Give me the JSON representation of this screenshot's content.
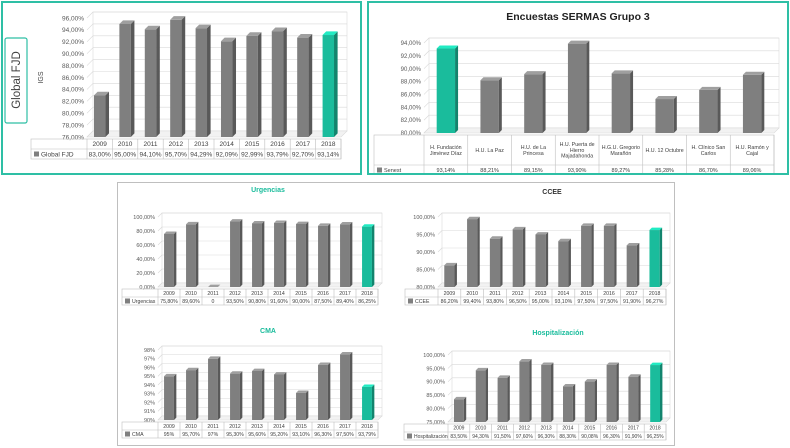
{
  "colors": {
    "bar": "#7f7f7f",
    "highlight": "#1abc9c",
    "title_teal": "#1abc9c",
    "border": "#2ebfa5"
  },
  "side_label": "Global FJD",
  "chart_data": [
    {
      "id": "fjd",
      "type": "bar",
      "title": "",
      "ylabel": "IGS",
      "categories": [
        "2009",
        "2010",
        "2011",
        "2012",
        "2013",
        "2014",
        "2015",
        "2016",
        "2017",
        "2018"
      ],
      "series": [
        {
          "name": "Global FJD",
          "values": [
            83.0,
            95.0,
            94.1,
            95.7,
            94.29,
            92.09,
            92.99,
            93.79,
            92.7,
            93.14
          ]
        }
      ],
      "value_labels": [
        "83,00%",
        "95,00%",
        "94,10%",
        "95,70%",
        "94,29%",
        "92,09%",
        "92,99%",
        "93,79%",
        "92,70%",
        "93,14%"
      ],
      "ylim": [
        76,
        96
      ],
      "yticks": [
        "76,00%",
        "78,00%",
        "80,00%",
        "82,00%",
        "84,00%",
        "86,00%",
        "88,00%",
        "90,00%",
        "92,00%",
        "94,00%",
        "96,00%"
      ],
      "highlight_index": 9,
      "legend": "bottom-table"
    },
    {
      "id": "sermas",
      "type": "bar",
      "title": "Encuestas SERMAS Grupo 3",
      "categories": [
        "H. Fundación Jiménez Díaz",
        "H.U. La Paz",
        "H.U. de La Princesa",
        "H.U. Puerta de Hierro Majadahonda",
        "H.G.U. Gregorio Marañón",
        "H.U. 12 Octubre",
        "H. Clínico San Carlos",
        "H.U. Ramón y Cajal"
      ],
      "series": [
        {
          "name": "Senest",
          "values": [
            93.14,
            88.21,
            89.15,
            93.9,
            89.27,
            85.28,
            86.7,
            89.06
          ]
        }
      ],
      "value_labels": [
        "93,14%",
        "88,21%",
        "89,15%",
        "93,90%",
        "89,27%",
        "85,28%",
        "86,70%",
        "89,06%"
      ],
      "ylim": [
        80,
        94
      ],
      "yticks": [
        "80,00%",
        "82,00%",
        "84,00%",
        "86,00%",
        "88,00%",
        "90,00%",
        "92,00%",
        "94,00%"
      ],
      "highlight_index": 0,
      "legend": "bottom-table"
    },
    {
      "id": "urgencias",
      "type": "bar",
      "title": "Urgencias",
      "categories": [
        "2009",
        "2010",
        "2011",
        "2012",
        "2013",
        "2014",
        "2015",
        "2016",
        "2017",
        "2018"
      ],
      "series": [
        {
          "name": "Urgencias",
          "values": [
            75.8,
            89.6,
            0,
            93.5,
            90.8,
            91.6,
            90.0,
            87.5,
            89.4,
            86.25
          ]
        }
      ],
      "value_labels": [
        "75,80%",
        "89,60%",
        "0",
        "93,50%",
        "90,80%",
        "91,60%",
        "90,00%",
        "87,50%",
        "89,40%",
        "86,25%"
      ],
      "ylim": [
        0,
        100
      ],
      "yticks": [
        "0,00%",
        "20,00%",
        "40,00%",
        "60,00%",
        "80,00%",
        "100,00%"
      ],
      "highlight_index": 9,
      "legend": "bottom-table"
    },
    {
      "id": "ceee",
      "type": "bar",
      "title": "CCEE",
      "categories": [
        "2009",
        "2010",
        "2011",
        "2012",
        "2013",
        "2014",
        "2015",
        "2016",
        "2017",
        "2018"
      ],
      "series": [
        {
          "name": "CCEE",
          "values": [
            86.2,
            99.4,
            93.8,
            96.5,
            95.0,
            93.1,
            97.5,
            97.5,
            91.9,
            96.27
          ]
        }
      ],
      "value_labels": [
        "86,20%",
        "99,40%",
        "93,80%",
        "96,50%",
        "95,00%",
        "93,10%",
        "97,50%",
        "97,50%",
        "91,90%",
        "96,27%"
      ],
      "ylim": [
        80,
        100
      ],
      "yticks": [
        "80,00%",
        "85,00%",
        "90,00%",
        "95,00%",
        "100,00%"
      ],
      "highlight_index": 9,
      "legend": "bottom-table"
    },
    {
      "id": "cma",
      "type": "bar",
      "title": "CMA",
      "categories": [
        "2009",
        "2010",
        "2011",
        "2012",
        "2013",
        "2014",
        "2015",
        "2016",
        "2017",
        "2018"
      ],
      "series": [
        {
          "name": "CMA",
          "values": [
            95.0,
            95.7,
            97.0,
            95.3,
            95.6,
            95.2,
            93.1,
            96.3,
            97.5,
            93.79
          ]
        }
      ],
      "value_labels": [
        "95%",
        "95,70%",
        "97%",
        "95,30%",
        "95,60%",
        "95,20%",
        "93,10%",
        "96,30%",
        "97,50%",
        "93,79%"
      ],
      "ylim": [
        90,
        98
      ],
      "yticks": [
        "90%",
        "91%",
        "92%",
        "93%",
        "94%",
        "95%",
        "96%",
        "97%",
        "98%"
      ],
      "highlight_index": 9,
      "legend": "bottom-table"
    },
    {
      "id": "hosp",
      "type": "bar",
      "title": "Hospitalización",
      "categories": [
        "2009",
        "2010",
        "2011",
        "2012",
        "2013",
        "2014",
        "2015",
        "2016",
        "2017",
        "2018"
      ],
      "series": [
        {
          "name": "Hospitalización",
          "values": [
            83.5,
            94.3,
            91.5,
            97.6,
            96.3,
            88.3,
            90.08,
            96.3,
            91.9,
            96.25
          ]
        }
      ],
      "value_labels": [
        "83,50%",
        "94,30%",
        "91,50%",
        "97,60%",
        "96,30%",
        "88,30%",
        "90,08%",
        "96,30%",
        "91,90%",
        "96,25%"
      ],
      "ylim": [
        75,
        100
      ],
      "yticks": [
        "75,00%",
        "80,00%",
        "85,00%",
        "90,00%",
        "95,00%",
        "100,00%"
      ],
      "highlight_index": 9,
      "legend": "bottom-table"
    }
  ]
}
